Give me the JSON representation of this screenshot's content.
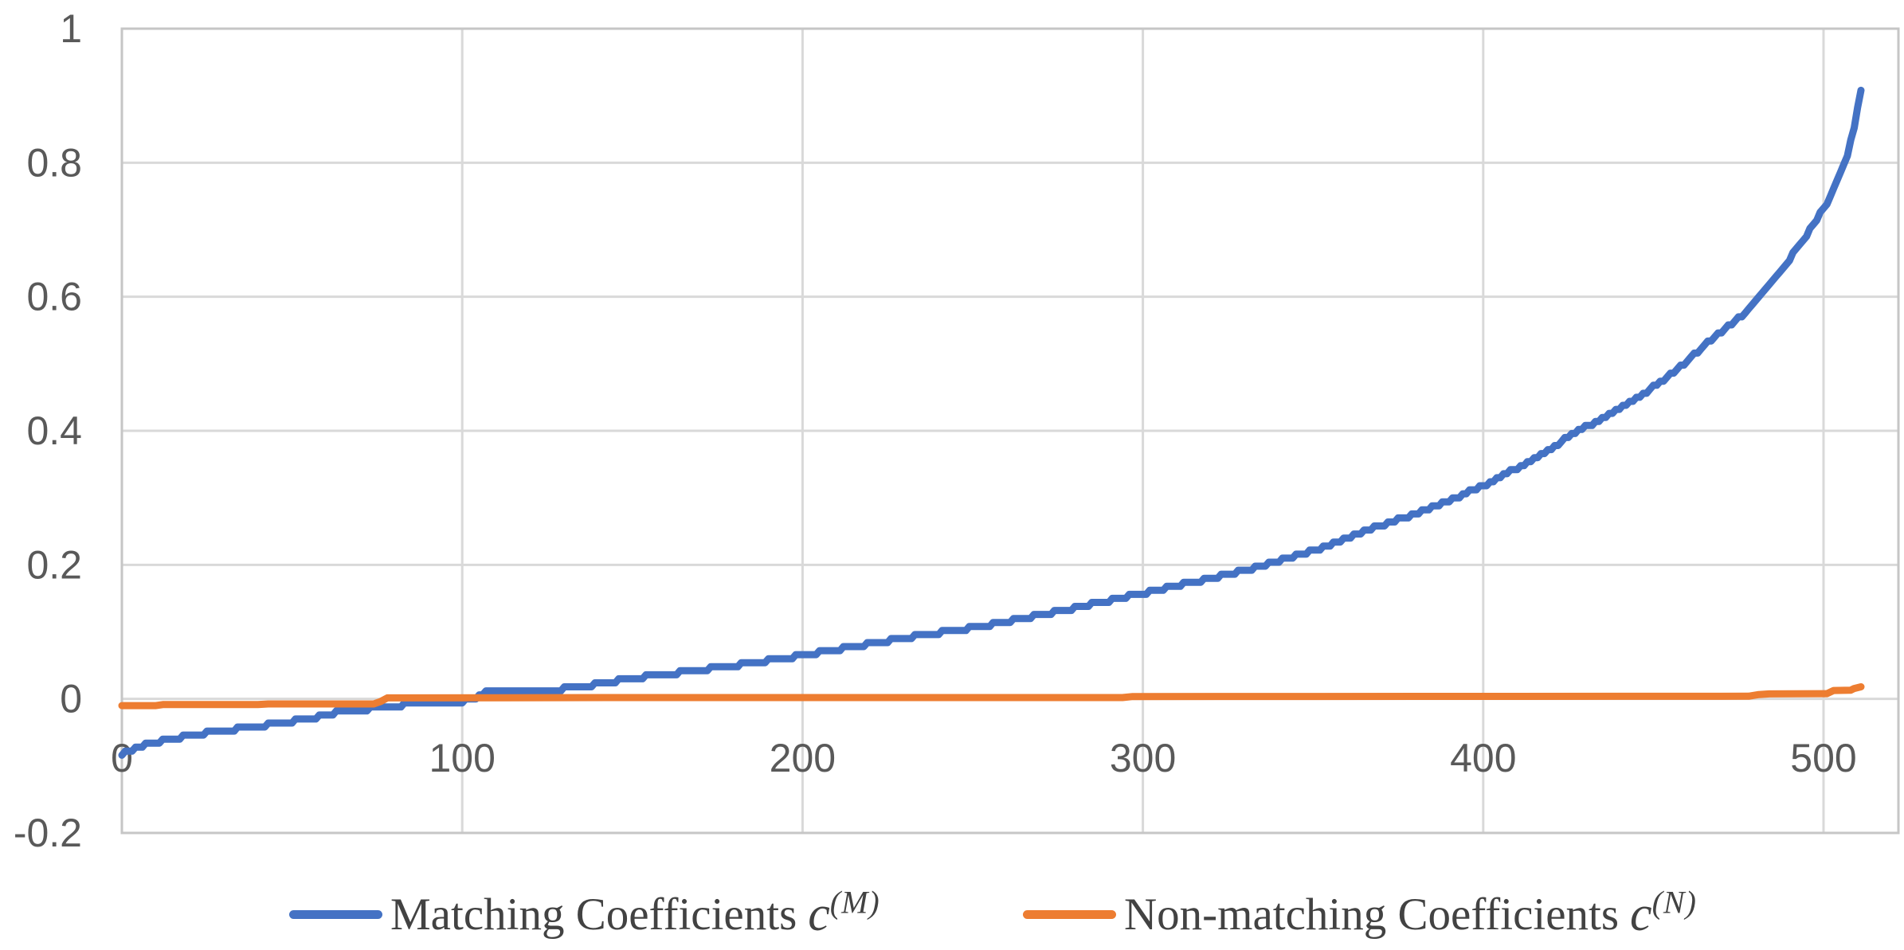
{
  "colors": {
    "background": "#ffffff",
    "grid": "#d9d9d9",
    "frame": "#c6c6c6",
    "tick_label": "#595959",
    "legend_text": "#424242",
    "matching_blue": "#4472C4",
    "nonmatching_orange": "#ED7D31"
  },
  "chart_data": {
    "type": "line",
    "title": "",
    "xlabel": "",
    "ylabel": "",
    "xlim": [
      0,
      522
    ],
    "ylim": [
      -0.2,
      1.0
    ],
    "grid": true,
    "legend_position": "bottom",
    "xticks": [
      {
        "v": 0,
        "label": "0"
      },
      {
        "v": 100,
        "label": "100"
      },
      {
        "v": 200,
        "label": "200"
      },
      {
        "v": 300,
        "label": "300"
      },
      {
        "v": 400,
        "label": "400"
      },
      {
        "v": 500,
        "label": "500"
      }
    ],
    "yticks": [
      {
        "v": -0.2,
        "label": "-0.2"
      },
      {
        "v": 0,
        "label": "0"
      },
      {
        "v": 0.2,
        "label": "0.2"
      },
      {
        "v": 0.4,
        "label": "0.4"
      },
      {
        "v": 0.6,
        "label": "0.6"
      },
      {
        "v": 0.8,
        "label": "0.8"
      },
      {
        "v": 1,
        "label": "1"
      }
    ],
    "series": [
      {
        "name": "Matching Coefficients c^(M)",
        "color": "#4472C4",
        "style": "staircase",
        "step_quantum": 0.006,
        "points": [
          [
            0,
            -0.082
          ],
          [
            3,
            -0.076
          ],
          [
            6,
            -0.07
          ],
          [
            10,
            -0.065
          ],
          [
            15,
            -0.06
          ],
          [
            20,
            -0.055
          ],
          [
            27,
            -0.049
          ],
          [
            34,
            -0.045
          ],
          [
            40,
            -0.041
          ],
          [
            47,
            -0.036
          ],
          [
            53,
            -0.031
          ],
          [
            58,
            -0.027
          ],
          [
            63,
            -0.021
          ],
          [
            67,
            -0.018
          ],
          [
            73,
            -0.015
          ],
          [
            79,
            -0.014
          ],
          [
            83,
            -0.009
          ],
          [
            88,
            -0.0075
          ],
          [
            97,
            -0.007
          ],
          [
            100,
            -0.004
          ],
          [
            103,
            0.0
          ],
          [
            107,
            0.01
          ],
          [
            122,
            0.0115
          ],
          [
            132,
            0.016
          ],
          [
            140,
            0.022
          ],
          [
            150,
            0.031
          ],
          [
            160,
            0.0365
          ],
          [
            170,
            0.043
          ],
          [
            180,
            0.05
          ],
          [
            190,
            0.0575
          ],
          [
            200,
            0.065
          ],
          [
            212,
            0.0755
          ],
          [
            224,
            0.086
          ],
          [
            236,
            0.096
          ],
          [
            248,
            0.1045
          ],
          [
            260,
            0.115
          ],
          [
            272,
            0.127
          ],
          [
            284,
            0.14
          ],
          [
            295,
            0.152
          ],
          [
            305,
            0.163
          ],
          [
            318,
            0.178
          ],
          [
            330,
            0.192
          ],
          [
            342,
            0.209
          ],
          [
            354,
            0.228
          ],
          [
            366,
            0.252
          ],
          [
            378,
            0.272
          ],
          [
            390,
            0.296
          ],
          [
            400,
            0.318
          ],
          [
            414,
            0.355
          ],
          [
            428,
            0.4
          ],
          [
            440,
            0.432
          ],
          [
            450,
            0.465
          ],
          [
            458,
            0.495
          ],
          [
            468,
            0.54
          ],
          [
            476,
            0.573
          ],
          [
            481,
            0.6
          ],
          [
            487,
            0.635
          ],
          [
            493,
            0.678
          ],
          [
            498,
            0.715
          ],
          [
            502,
            0.748
          ],
          [
            505,
            0.785
          ],
          [
            507,
            0.812
          ],
          [
            509,
            0.852
          ],
          [
            510,
            0.88
          ],
          [
            511,
            0.908
          ]
        ]
      },
      {
        "name": "Non-matching Coefficients c^(N)",
        "color": "#ED7D31",
        "style": "line",
        "points": [
          [
            0,
            -0.01
          ],
          [
            10,
            -0.01
          ],
          [
            12,
            -0.0085
          ],
          [
            40,
            -0.0085
          ],
          [
            43,
            -0.0075
          ],
          [
            74,
            -0.0075
          ],
          [
            76,
            -0.004
          ],
          [
            78,
            0.0015
          ],
          [
            150,
            0.002
          ],
          [
            294,
            0.002
          ],
          [
            297,
            0.0035
          ],
          [
            478,
            0.004
          ],
          [
            481,
            0.0065
          ],
          [
            484,
            0.0075
          ],
          [
            501,
            0.0078
          ],
          [
            503,
            0.0125
          ],
          [
            508,
            0.013
          ],
          [
            509,
            0.0155
          ],
          [
            511,
            0.018
          ]
        ]
      }
    ],
    "legend": [
      {
        "label_text": "Matching Coefficients",
        "math_var": "c",
        "math_sup": "(M)"
      },
      {
        "label_text": "Non-matching Coefficients",
        "math_var": "c",
        "math_sup": "(N)"
      }
    ]
  }
}
